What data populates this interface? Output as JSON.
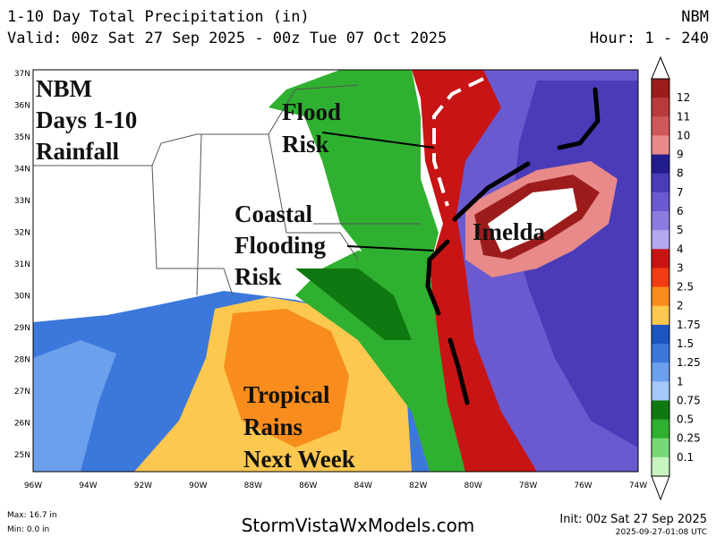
{
  "header": {
    "title": "1-10 Day Total Precipitation (in)",
    "model": "NBM",
    "valid": "Valid: 00z Sat 27 Sep 2025 - 00z Tue 07 Oct 2025",
    "hours": "Hour: 1 - 240"
  },
  "map": {
    "lat_labels": [
      "37N",
      "36N",
      "35N",
      "34N",
      "33N",
      "32N",
      "31N",
      "30N",
      "29N",
      "28N",
      "27N",
      "26N",
      "25N"
    ],
    "lon_labels": [
      "96W",
      "94W",
      "92W",
      "90W",
      "88W",
      "86W",
      "84W",
      "82W",
      "80W",
      "78W",
      "76W",
      "74W"
    ],
    "annotations": [
      {
        "lines": [
          "NBM",
          "Days 1-10",
          "Rainfall"
        ]
      },
      {
        "lines": [
          "Flood",
          "Risk"
        ]
      },
      {
        "lines": [
          "Coastal",
          "Flooding",
          "Risk"
        ]
      },
      {
        "lines": [
          "Imelda"
        ]
      },
      {
        "lines": [
          "Tropical",
          "Rains",
          "Next Week"
        ]
      }
    ]
  },
  "legend": {
    "labels": [
      "12",
      "11",
      "10",
      "9",
      "8",
      "7",
      "6",
      "5",
      "4",
      "3",
      "2.5",
      "2",
      "1.75",
      "1.5",
      "1.25",
      "1",
      "0.75",
      "0.5",
      "0.25",
      "0.1"
    ],
    "colors": [
      "#9c1c1c",
      "#b83a3a",
      "#d05858",
      "#e88a8a",
      "#221c8c",
      "#4a3cb8",
      "#6a5ad0",
      "#8c7ce0",
      "#b4a8f0",
      "#c81414",
      "#f03c14",
      "#f88c1c",
      "#fcc850",
      "#1c54c0",
      "#3c78dc",
      "#6ca0ec",
      "#a4c8f8",
      "#107810",
      "#30b030",
      "#78d878",
      "#c8f4c0"
    ]
  },
  "footer": {
    "max": "Max: 16.7 in",
    "min": "Min: 0.0 in",
    "site": "StormVistaWxModels.com",
    "init": "Init: 00z Sat 27 Sep 2025",
    "stamp": "2025-09-27-01:08 UTC"
  }
}
